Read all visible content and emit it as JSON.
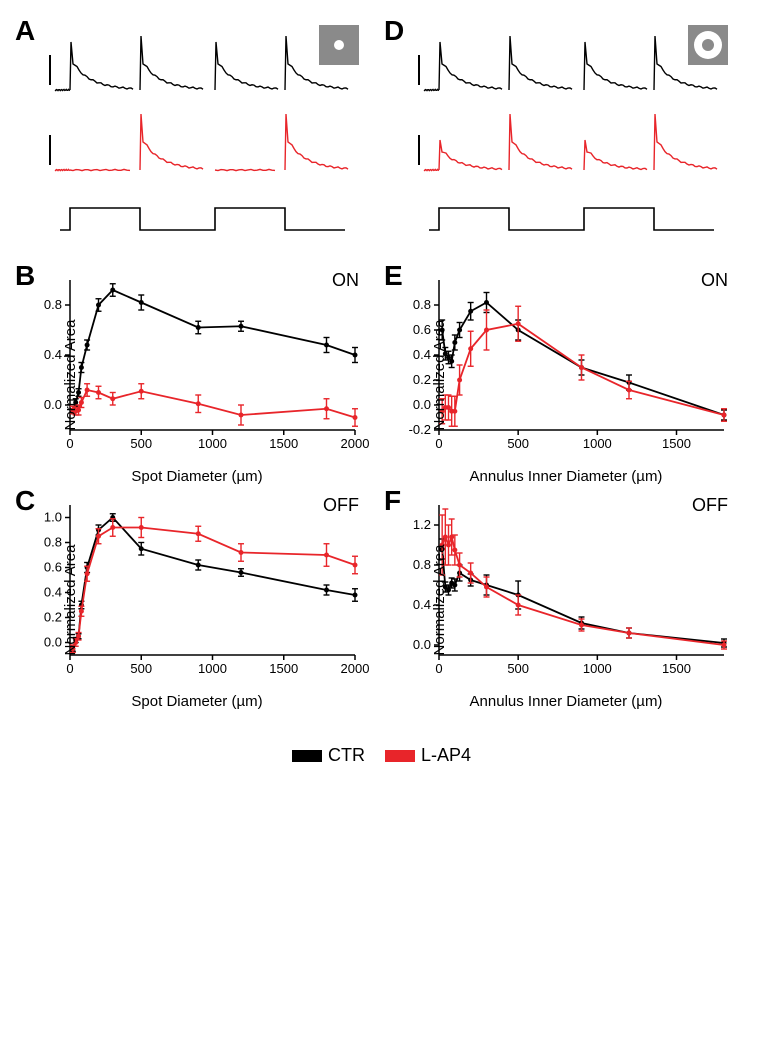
{
  "colors": {
    "ctr": "#000000",
    "lap4": "#e8252a",
    "bg": "#ffffff",
    "stim_box": "#8a8a8a",
    "axis": "#000000"
  },
  "fonts": {
    "panel_label_size": 28,
    "axis_label_size": 15,
    "tick_size": 13,
    "legend_size": 18
  },
  "legend": {
    "ctr_label": "CTR",
    "lap4_label": "L-AP4"
  },
  "panels": {
    "A": {
      "label": "A"
    },
    "B": {
      "label": "B",
      "sublabel": "ON",
      "xlabel": "Spot Diameter (µm)",
      "ylabel": "Normalized Area"
    },
    "C": {
      "label": "C",
      "sublabel": "OFF",
      "xlabel": "Spot Diameter (µm)",
      "ylabel": "Normalized Area"
    },
    "D": {
      "label": "D"
    },
    "E": {
      "label": "E",
      "sublabel": "ON",
      "xlabel": "Annulus Inner Diameter (µm)",
      "ylabel": "Normalized Area"
    },
    "F": {
      "label": "F",
      "sublabel": "OFF",
      "xlabel": "Annulus Inner Diameter (µm)",
      "ylabel": "Normalized Area"
    }
  },
  "chartB": {
    "xlim": [
      0,
      2000
    ],
    "ylim": [
      -0.2,
      1.0
    ],
    "xticks": [
      0,
      500,
      1000,
      1500,
      2000
    ],
    "yticks": [
      0.0,
      0.4,
      0.8
    ],
    "ctr": {
      "x": [
        20,
        40,
        60,
        80,
        120,
        200,
        300,
        500,
        900,
        1200,
        1800,
        2000
      ],
      "y": [
        -0.05,
        0.02,
        0.1,
        0.3,
        0.48,
        0.8,
        0.92,
        0.82,
        0.62,
        0.63,
        0.48,
        0.4
      ],
      "err": [
        0.02,
        0.03,
        0.03,
        0.04,
        0.04,
        0.05,
        0.05,
        0.06,
        0.05,
        0.04,
        0.06,
        0.06
      ]
    },
    "lap4": {
      "x": [
        20,
        40,
        60,
        80,
        120,
        200,
        300,
        500,
        900,
        1200,
        1800,
        2000
      ],
      "y": [
        -0.04,
        -0.05,
        -0.04,
        0.02,
        0.12,
        0.1,
        0.05,
        0.11,
        0.01,
        -0.08,
        -0.03,
        -0.1
      ],
      "err": [
        0.03,
        0.03,
        0.04,
        0.04,
        0.05,
        0.05,
        0.05,
        0.06,
        0.07,
        0.08,
        0.08,
        0.07
      ]
    }
  },
  "chartC": {
    "xlim": [
      0,
      2000
    ],
    "ylim": [
      -0.1,
      1.1
    ],
    "xticks": [
      0,
      500,
      1000,
      1500,
      2000
    ],
    "yticks": [
      0.0,
      0.2,
      0.4,
      0.6,
      0.8,
      1.0
    ],
    "ctr": {
      "x": [
        20,
        40,
        60,
        80,
        120,
        200,
        300,
        500,
        900,
        1200,
        1800,
        2000
      ],
      "y": [
        -0.05,
        0.02,
        0.05,
        0.3,
        0.6,
        0.9,
        1.0,
        0.75,
        0.62,
        0.56,
        0.42,
        0.38
      ],
      "err": [
        0.02,
        0.02,
        0.02,
        0.03,
        0.04,
        0.04,
        0.03,
        0.05,
        0.04,
        0.03,
        0.04,
        0.05
      ]
    },
    "lap4": {
      "x": [
        20,
        40,
        60,
        80,
        120,
        200,
        300,
        500,
        900,
        1200,
        1800,
        2000
      ],
      "y": [
        -0.05,
        0.0,
        0.05,
        0.25,
        0.55,
        0.85,
        0.92,
        0.92,
        0.87,
        0.72,
        0.7,
        0.62
      ],
      "err": [
        0.03,
        0.03,
        0.03,
        0.04,
        0.06,
        0.06,
        0.07,
        0.08,
        0.06,
        0.07,
        0.09,
        0.07
      ]
    }
  },
  "chartE": {
    "xlim": [
      0,
      1800
    ],
    "ylim": [
      -0.2,
      1.0
    ],
    "xticks": [
      0,
      500,
      1000,
      1500
    ],
    "yticks": [
      -0.2,
      0.0,
      0.2,
      0.4,
      0.6,
      0.8
    ],
    "ctr": {
      "x": [
        20,
        40,
        60,
        80,
        100,
        130,
        200,
        300,
        500,
        900,
        1200,
        1800
      ],
      "y": [
        0.6,
        0.41,
        0.38,
        0.35,
        0.5,
        0.6,
        0.75,
        0.82,
        0.6,
        0.3,
        0.18,
        -0.08
      ],
      "err": [
        0.08,
        0.05,
        0.05,
        0.05,
        0.06,
        0.06,
        0.07,
        0.08,
        0.08,
        0.06,
        0.06,
        0.04
      ]
    },
    "lap4": {
      "x": [
        20,
        40,
        60,
        80,
        100,
        130,
        200,
        300,
        500,
        900,
        1200,
        1800
      ],
      "y": [
        -0.05,
        -0.02,
        -0.02,
        -0.05,
        -0.05,
        0.2,
        0.45,
        0.6,
        0.65,
        0.3,
        0.12,
        -0.08
      ],
      "err": [
        0.1,
        0.1,
        0.1,
        0.12,
        0.12,
        0.12,
        0.14,
        0.16,
        0.14,
        0.1,
        0.07,
        0.05
      ]
    }
  },
  "chartF": {
    "xlim": [
      0,
      1800
    ],
    "ylim": [
      -0.1,
      1.4
    ],
    "xticks": [
      0,
      500,
      1000,
      1500
    ],
    "yticks": [
      0.0,
      0.4,
      0.8,
      1.2
    ],
    "ctr": {
      "x": [
        20,
        40,
        60,
        80,
        100,
        130,
        200,
        300,
        500,
        900,
        1200,
        1800
      ],
      "y": [
        0.96,
        0.58,
        0.55,
        0.62,
        0.6,
        0.72,
        0.65,
        0.6,
        0.5,
        0.22,
        0.12,
        0.02
      ],
      "err": [
        0.1,
        0.05,
        0.05,
        0.05,
        0.06,
        0.08,
        0.06,
        0.1,
        0.14,
        0.06,
        0.05,
        0.04
      ]
    },
    "lap4": {
      "x": [
        20,
        40,
        60,
        80,
        100,
        130,
        200,
        300,
        500,
        900,
        1200,
        1800
      ],
      "y": [
        1.0,
        1.08,
        1.0,
        1.08,
        0.95,
        0.8,
        0.72,
        0.58,
        0.4,
        0.2,
        0.12,
        0.0
      ],
      "err": [
        0.3,
        0.28,
        0.2,
        0.18,
        0.15,
        0.12,
        0.1,
        0.1,
        0.1,
        0.06,
        0.05,
        0.04
      ]
    }
  }
}
